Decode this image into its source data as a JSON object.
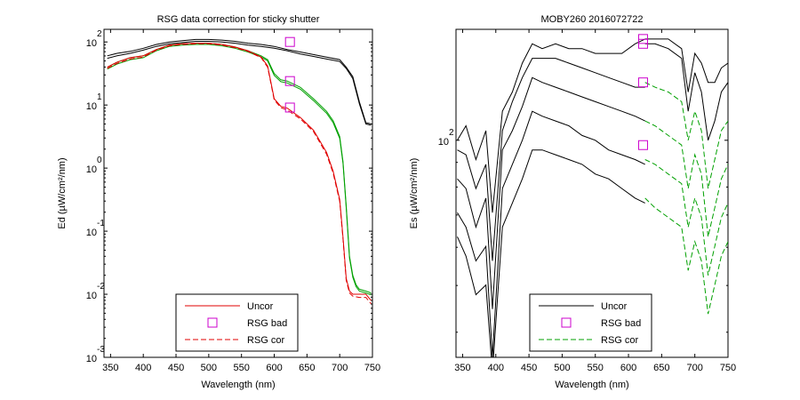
{
  "chart_data": [
    {
      "type": "line",
      "title": "RSG data correction for sticky shutter",
      "xlabel": "Wavelength (nm)",
      "ylabel": "Ed (µW/cm²/nm)",
      "xlim": [
        340,
        750
      ],
      "xticks": [
        350,
        400,
        450,
        500,
        550,
        600,
        650,
        700,
        750
      ],
      "ylim_log10": [
        -3,
        2.2
      ],
      "yscale": "log",
      "yticks": [
        {
          "exp": "2",
          "v": 2
        },
        {
          "exp": "1",
          "v": 1
        },
        {
          "exp": "0",
          "v": 0
        },
        {
          "exp": "-1",
          "v": -1
        },
        {
          "exp": "-2",
          "v": -2
        },
        {
          "exp": "-3",
          "v": -3
        }
      ],
      "legend": {
        "placement": "bottom-center",
        "entries": [
          "Uncor",
          "RSG bad",
          "RSG cor"
        ]
      },
      "series": [
        {
          "name": "Uncor",
          "color": "#000000",
          "style": "solid",
          "x": [
            345,
            360,
            380,
            400,
            420,
            440,
            460,
            480,
            500,
            520,
            540,
            560,
            580,
            600,
            620,
            640,
            660,
            680,
            700,
            710,
            720,
            730,
            740,
            748
          ],
          "y": [
            1.78,
            1.82,
            1.85,
            1.9,
            1.96,
            2.0,
            2.02,
            2.04,
            2.04,
            2.03,
            2.01,
            1.98,
            1.96,
            1.93,
            1.88,
            1.84,
            1.8,
            1.76,
            1.72,
            1.6,
            1.45,
            1.05,
            0.72,
            0.7
          ]
        },
        {
          "name": "Uncor",
          "color": "#000000",
          "style": "solid",
          "x": [
            345,
            360,
            380,
            400,
            420,
            440,
            460,
            480,
            500,
            520,
            540,
            560,
            580,
            600,
            620,
            640,
            660,
            680,
            700,
            710,
            720,
            730,
            740,
            748
          ],
          "y": [
            1.74,
            1.78,
            1.82,
            1.87,
            1.93,
            1.97,
            1.99,
            2.01,
            2.01,
            2.0,
            1.98,
            1.95,
            1.93,
            1.9,
            1.86,
            1.81,
            1.77,
            1.73,
            1.69,
            1.58,
            1.42,
            1.02,
            0.7,
            0.68
          ]
        },
        {
          "name": "RSG cor",
          "color": "#00a000",
          "style": "solid",
          "x": [
            345,
            360,
            380,
            400,
            420,
            440,
            460,
            480,
            500,
            520,
            540,
            560,
            580,
            590,
            600,
            610,
            620,
            640,
            660,
            680,
            690,
            700,
            705,
            710,
            715,
            720,
            725,
            730,
            740,
            748
          ],
          "y": [
            1.6,
            1.68,
            1.75,
            1.78,
            1.88,
            1.95,
            1.97,
            1.98,
            1.98,
            1.96,
            1.92,
            1.86,
            1.78,
            1.72,
            1.5,
            1.4,
            1.38,
            1.28,
            1.1,
            0.9,
            0.75,
            0.5,
            0.1,
            -0.6,
            -1.4,
            -1.7,
            -1.85,
            -1.92,
            -1.95,
            -1.98
          ]
        },
        {
          "name": "RSG cor",
          "color": "#00a000",
          "style": "solid",
          "x": [
            345,
            360,
            380,
            400,
            420,
            440,
            460,
            480,
            500,
            520,
            540,
            560,
            580,
            590,
            600,
            610,
            620,
            640,
            660,
            680,
            690,
            700,
            705,
            710,
            715,
            720,
            725,
            730,
            740,
            748
          ],
          "y": [
            1.57,
            1.65,
            1.72,
            1.75,
            1.86,
            1.93,
            1.95,
            1.96,
            1.96,
            1.94,
            1.9,
            1.84,
            1.76,
            1.7,
            1.47,
            1.37,
            1.35,
            1.25,
            1.07,
            0.87,
            0.72,
            0.47,
            0.07,
            -0.63,
            -1.43,
            -1.73,
            -1.88,
            -1.95,
            -1.98,
            -2.01
          ]
        },
        {
          "name": "Uncor",
          "color": "#e00000",
          "style": "solid",
          "x": [
            345,
            360,
            380,
            400,
            420,
            440,
            460,
            480,
            500,
            520,
            540,
            560,
            580,
            590,
            600,
            610,
            620,
            640,
            660,
            680,
            690,
            700,
            705,
            710,
            715,
            720,
            730,
            740,
            748
          ],
          "y": [
            1.6,
            1.68,
            1.75,
            1.78,
            1.88,
            1.95,
            1.97,
            1.98,
            1.98,
            1.96,
            1.92,
            1.86,
            1.76,
            1.62,
            1.1,
            0.98,
            0.95,
            0.8,
            0.6,
            0.25,
            -0.05,
            -0.5,
            -1.1,
            -1.75,
            -1.95,
            -2.0,
            -2.0,
            -2.0,
            -2.1
          ]
        },
        {
          "name": "RSG cor",
          "color": "#e00000",
          "style": "dashed",
          "x": [
            345,
            360,
            380,
            400,
            420,
            440,
            460,
            480,
            500,
            520,
            540,
            560,
            580,
            590,
            600,
            610,
            620,
            640,
            660,
            680,
            690,
            700,
            705,
            710,
            715,
            720,
            730,
            740,
            748
          ],
          "y": [
            1.58,
            1.66,
            1.73,
            1.76,
            1.87,
            1.94,
            1.96,
            1.97,
            1.97,
            1.95,
            1.91,
            1.85,
            1.75,
            1.6,
            1.08,
            0.96,
            0.92,
            0.78,
            0.58,
            0.22,
            -0.08,
            -0.53,
            -1.13,
            -1.78,
            -1.98,
            -2.03,
            -2.05,
            -2.05,
            -2.15
          ]
        }
      ],
      "rsg_bad": [
        {
          "x": 624,
          "y": 2.0
        },
        {
          "x": 624,
          "y": 1.38
        },
        {
          "x": 624,
          "y": 0.96
        }
      ]
    },
    {
      "type": "line",
      "title": "MOBY260  2016072722",
      "xlabel": "Wavelength (nm)",
      "ylabel": "Es (µW/cm²/nm)",
      "xlim": [
        340,
        750
      ],
      "xticks": [
        350,
        400,
        450,
        500,
        550,
        600,
        650,
        700,
        750
      ],
      "ylim_log10": [
        1.55,
        2.23
      ],
      "yscale": "log",
      "yticks": [
        {
          "exp": "2",
          "v": 2
        }
      ],
      "legend": {
        "placement": "bottom-center",
        "entries": [
          "Uncor",
          "RSG bad",
          "RSG cor"
        ]
      },
      "series": [
        {
          "name": "Uncor",
          "color": "#000000",
          "style": "solid",
          "x": [
            342,
            355,
            370,
            385,
            395,
            410,
            425,
            440,
            455,
            470,
            490,
            510,
            530,
            550,
            570,
            590,
            610,
            625
          ],
          "y": [
            2.0,
            2.03,
            1.96,
            2.02,
            1.85,
            2.06,
            2.1,
            2.16,
            2.2,
            2.19,
            2.2,
            2.19,
            2.19,
            2.18,
            2.18,
            2.18,
            2.2,
            2.21
          ]
        },
        {
          "name": "Uncor",
          "color": "#000000",
          "style": "solid",
          "x": [
            342,
            355,
            370,
            385,
            395,
            410,
            425,
            440,
            455,
            470,
            490,
            510,
            530,
            550,
            570,
            590,
            610,
            625
          ],
          "y": [
            1.98,
            1.97,
            1.9,
            1.95,
            1.75,
            2.02,
            2.08,
            2.13,
            2.17,
            2.17,
            2.17,
            2.16,
            2.15,
            2.14,
            2.13,
            2.12,
            2.11,
            2.11
          ]
        },
        {
          "name": "Uncor",
          "color": "#000000",
          "style": "solid",
          "x": [
            342,
            355,
            370,
            385,
            395,
            410,
            425,
            440,
            455,
            470,
            490,
            510,
            530,
            550,
            570,
            590,
            610,
            625
          ],
          "y": [
            1.92,
            1.9,
            1.82,
            1.88,
            1.65,
            1.98,
            2.02,
            2.07,
            2.13,
            2.12,
            2.11,
            2.1,
            2.09,
            2.08,
            2.07,
            2.06,
            2.05,
            2.04
          ]
        },
        {
          "name": "Uncor",
          "color": "#000000",
          "style": "solid",
          "x": [
            342,
            355,
            370,
            385,
            395,
            410,
            425,
            440,
            455,
            470,
            490,
            510,
            530,
            550,
            570,
            590,
            610,
            625
          ],
          "y": [
            1.85,
            1.82,
            1.75,
            1.78,
            1.55,
            1.9,
            1.95,
            2.0,
            2.06,
            2.05,
            2.04,
            2.03,
            2.01,
            2.0,
            1.98,
            1.97,
            1.96,
            1.95
          ]
        },
        {
          "name": "Uncor",
          "color": "#000000",
          "style": "solid",
          "x": [
            342,
            355,
            370,
            385,
            395,
            410,
            425,
            440,
            455,
            470,
            490,
            510,
            530,
            550,
            570,
            590,
            610,
            625
          ],
          "y": [
            1.8,
            1.76,
            1.68,
            1.7,
            1.52,
            1.82,
            1.87,
            1.92,
            1.98,
            1.98,
            1.97,
            1.96,
            1.95,
            1.93,
            1.92,
            1.9,
            1.88,
            1.87
          ]
        },
        {
          "name": "Uncor",
          "color": "#000000",
          "style": "solid",
          "x": [
            625,
            640,
            660,
            680,
            690,
            700,
            710,
            720,
            730,
            740,
            750
          ],
          "y": [
            2.21,
            2.21,
            2.21,
            2.19,
            2.1,
            2.18,
            2.16,
            2.12,
            2.12,
            2.15,
            2.16
          ]
        },
        {
          "name": "Uncor",
          "color": "#000000",
          "style": "solid",
          "x": [
            625,
            640,
            660,
            680,
            690,
            700,
            710,
            720,
            730,
            740,
            750
          ],
          "y": [
            2.2,
            2.2,
            2.19,
            2.17,
            2.06,
            2.14,
            2.1,
            2.0,
            2.04,
            2.1,
            2.12
          ]
        },
        {
          "name": "RSG cor",
          "color": "#00a000",
          "style": "dashed",
          "x": [
            625,
            640,
            660,
            680,
            690,
            700,
            710,
            720,
            730,
            740,
            750
          ],
          "y": [
            2.12,
            2.11,
            2.1,
            2.08,
            2.0,
            2.06,
            2.02,
            1.9,
            1.96,
            2.02,
            2.04
          ]
        },
        {
          "name": "RSG cor",
          "color": "#00a000",
          "style": "dashed",
          "x": [
            625,
            640,
            660,
            680,
            690,
            700,
            710,
            720,
            730,
            740,
            750
          ],
          "y": [
            2.04,
            2.03,
            2.01,
            1.99,
            1.9,
            1.97,
            1.93,
            1.8,
            1.86,
            1.92,
            1.95
          ]
        },
        {
          "name": "RSG cor",
          "color": "#00a000",
          "style": "dashed",
          "x": [
            625,
            640,
            660,
            680,
            690,
            700,
            710,
            720,
            730,
            740,
            750
          ],
          "y": [
            1.96,
            1.95,
            1.93,
            1.91,
            1.82,
            1.88,
            1.84,
            1.72,
            1.78,
            1.84,
            1.87
          ]
        },
        {
          "name": "RSG cor",
          "color": "#00a000",
          "style": "dashed",
          "x": [
            625,
            640,
            660,
            680,
            690,
            700,
            710,
            720,
            730,
            740,
            750
          ],
          "y": [
            1.88,
            1.86,
            1.84,
            1.82,
            1.73,
            1.79,
            1.75,
            1.64,
            1.7,
            1.76,
            1.79
          ]
        }
      ],
      "rsg_bad": [
        {
          "x": 622,
          "y": 2.21
        },
        {
          "x": 622,
          "y": 2.2
        },
        {
          "x": 622,
          "y": 2.12
        },
        {
          "x": 622,
          "y": 1.99
        }
      ]
    }
  ]
}
